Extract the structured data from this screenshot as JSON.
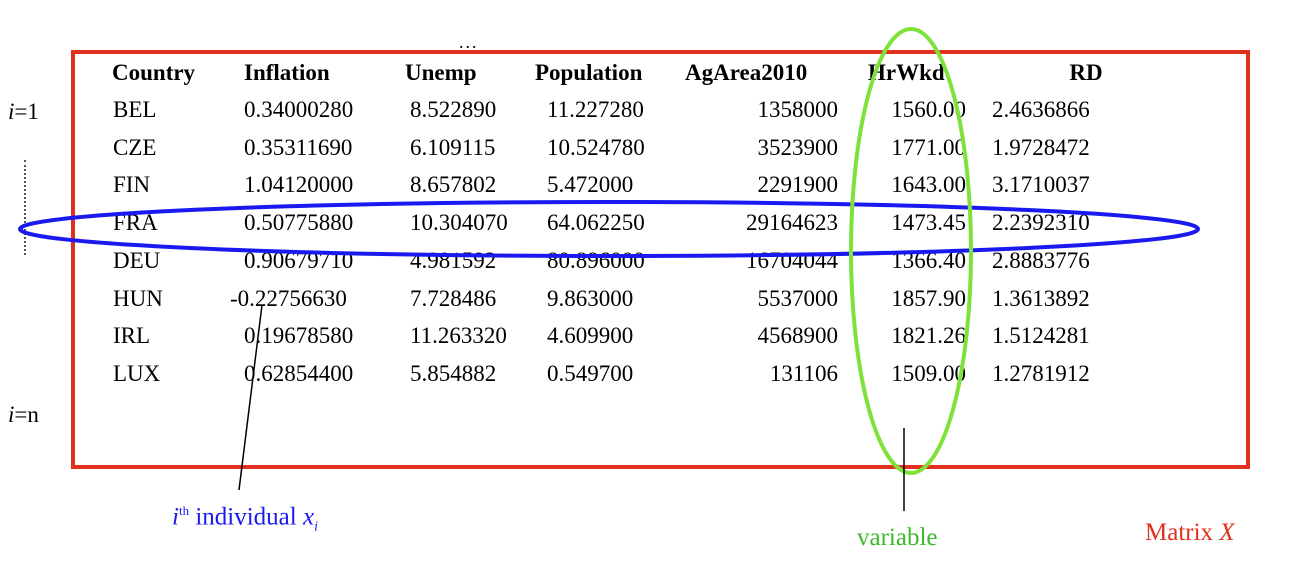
{
  "table": {
    "headers": [
      "Country",
      "Inflation",
      "Unemp",
      "Population",
      "AgArea2010",
      "HrWkd",
      "RD"
    ],
    "rows": [
      [
        "BEL",
        "0.34000280",
        "8.522890",
        "11.227280",
        "1358000",
        "1560.00",
        "2.4636866"
      ],
      [
        "CZE",
        "0.35311690",
        "6.109115",
        "10.524780",
        "3523900",
        "1771.00",
        "1.9728472"
      ],
      [
        "FIN",
        "1.04120000",
        "8.657802",
        "5.472000",
        "2291900",
        "1643.00",
        "3.1710037"
      ],
      [
        "FRA",
        "0.50775880",
        "10.304070",
        "64.062250",
        "29164623",
        "1473.45",
        "2.2392310"
      ],
      [
        "DEU",
        "0.90679710",
        "4.981592",
        "80.896000",
        "16704044",
        "1366.40",
        "2.8883776"
      ],
      [
        "HUN",
        "-0.22756630",
        "7.728486",
        "9.863000",
        "5537000",
        "1857.90",
        "1.3613892"
      ],
      [
        "IRL",
        "0.19678580",
        "11.263320",
        "4.609900",
        "4568900",
        "1821.26",
        "1.5124281"
      ],
      [
        "LUX",
        "0.62854400",
        "5.854882",
        "0.549700",
        "131106",
        "1509.00",
        "1.2781912"
      ]
    ]
  },
  "row_labels": {
    "first_var": "i",
    "first_eq": "=1",
    "last_var": "i",
    "last_eq": "=n"
  },
  "top_ellipsis": "...",
  "captions": {
    "individual_sup": "th",
    "individual_i": "i",
    "individual_text": "individual",
    "individual_x": "x",
    "individual_sub": "i",
    "variable": "variable",
    "matrix_text": "Matrix",
    "matrix_symbol": "X"
  },
  "colors": {
    "matrix": "#e0301e",
    "individual": "#1a1af0",
    "variable": "#7ee23a"
  }
}
